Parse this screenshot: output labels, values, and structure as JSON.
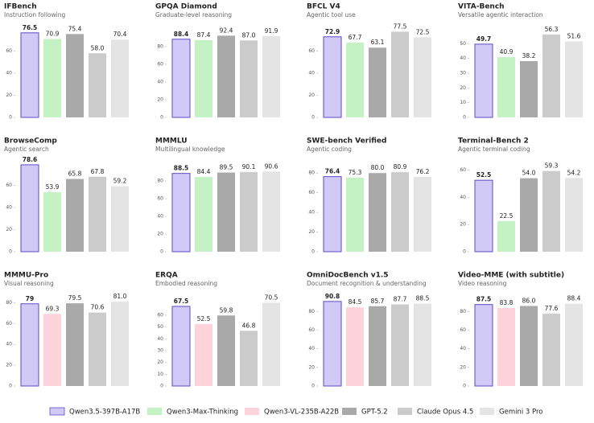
{
  "chart_data": [
    {
      "type": "bar",
      "title": "IFBench",
      "subtitle": "Instruction following",
      "ylim": [
        0,
        80
      ],
      "yticks": [
        0,
        20,
        40,
        60
      ],
      "series": [
        {
          "name": "Qwen3.5-397B-A17B",
          "color": "#d2caf6",
          "values": [
            76.5
          ]
        },
        {
          "name": "Qwen3-Max-Thinking",
          "color": "#c4f2c4",
          "values": [
            70.9
          ]
        },
        {
          "name": "GPT-5.2",
          "color": "#a9a9a9",
          "values": [
            75.4
          ]
        },
        {
          "name": "Claude Opus 4.5",
          "color": "#cbcbcb",
          "values": [
            58
          ],
          "value_labels": [
            "58.0"
          ]
        },
        {
          "name": "Gemini 3 Pro",
          "color": "#e4e4e4",
          "values": [
            70.4
          ]
        }
      ]
    },
    {
      "type": "bar",
      "title": "GPQA Diamond",
      "subtitle": "Graduate-level reasoning",
      "ylim": [
        0,
        100
      ],
      "yticks": [
        0,
        20,
        40,
        60,
        80
      ],
      "series": [
        {
          "name": "Qwen3.5-397B-A17B",
          "color": "#d2caf6",
          "values": [
            88.4
          ]
        },
        {
          "name": "Qwen3-Max-Thinking",
          "color": "#c4f2c4",
          "values": [
            87.4
          ]
        },
        {
          "name": "GPT-5.2",
          "color": "#a9a9a9",
          "values": [
            92.4
          ]
        },
        {
          "name": "Claude Opus 4.5",
          "color": "#cbcbcb",
          "values": [
            87
          ],
          "value_labels": [
            "87.0"
          ]
        },
        {
          "name": "Gemini 3 Pro",
          "color": "#e4e4e4",
          "values": [
            91.9
          ]
        }
      ]
    },
    {
      "type": "bar",
      "title": "BFCL V4",
      "subtitle": "Agentic tool use",
      "ylim": [
        0,
        80
      ],
      "yticks": [
        0,
        20,
        40,
        60
      ],
      "series": [
        {
          "name": "Qwen3.5-397B-A17B",
          "color": "#d2caf6",
          "values": [
            72.9
          ]
        },
        {
          "name": "Qwen3-Max-Thinking",
          "color": "#c4f2c4",
          "values": [
            67.7
          ]
        },
        {
          "name": "GPT-5.2",
          "color": "#a9a9a9",
          "values": [
            63.1
          ]
        },
        {
          "name": "Claude Opus 4.5",
          "color": "#cbcbcb",
          "values": [
            77.5
          ]
        },
        {
          "name": "Gemini 3 Pro",
          "color": "#e4e4e4",
          "values": [
            72.5
          ]
        }
      ]
    },
    {
      "type": "bar",
      "title": "VITA-Bench",
      "subtitle": "Versatile agentic interaction",
      "ylim": [
        0,
        60
      ],
      "yticks": [
        0,
        10,
        20,
        30,
        40,
        50
      ],
      "series": [
        {
          "name": "Qwen3.5-397B-A17B",
          "color": "#d2caf6",
          "values": [
            49.7
          ]
        },
        {
          "name": "Qwen3-Max-Thinking",
          "color": "#c4f2c4",
          "values": [
            40.9
          ]
        },
        {
          "name": "GPT-5.2",
          "color": "#a9a9a9",
          "values": [
            38.2
          ]
        },
        {
          "name": "Claude Opus 4.5",
          "color": "#cbcbcb",
          "values": [
            56.3
          ]
        },
        {
          "name": "Gemini 3 Pro",
          "color": "#e4e4e4",
          "values": [
            51.6
          ]
        }
      ]
    },
    {
      "type": "bar",
      "title": "BrowseComp",
      "subtitle": "Agentic search",
      "ylim": [
        0,
        80
      ],
      "yticks": [
        0,
        20,
        40,
        60
      ],
      "series": [
        {
          "name": "Qwen3.5-397B-A17B",
          "color": "#d2caf6",
          "values": [
            78.6
          ]
        },
        {
          "name": "Qwen3-Max-Thinking",
          "color": "#c4f2c4",
          "values": [
            53.9
          ]
        },
        {
          "name": "GPT-5.2",
          "color": "#a9a9a9",
          "values": [
            65.8
          ]
        },
        {
          "name": "Claude Opus 4.5",
          "color": "#cbcbcb",
          "values": [
            67.8
          ]
        },
        {
          "name": "Gemini 3 Pro",
          "color": "#e4e4e4",
          "values": [
            59.2
          ]
        }
      ]
    },
    {
      "type": "bar",
      "title": "MMMLU",
      "subtitle": "Multilingual knowledge",
      "ylim": [
        0,
        100
      ],
      "yticks": [
        0,
        20,
        40,
        60,
        80
      ],
      "series": [
        {
          "name": "Qwen3.5-397B-A17B",
          "color": "#d2caf6",
          "values": [
            88.5
          ]
        },
        {
          "name": "Qwen3-Max-Thinking",
          "color": "#c4f2c4",
          "values": [
            84.4
          ]
        },
        {
          "name": "GPT-5.2",
          "color": "#a9a9a9",
          "values": [
            89.5
          ]
        },
        {
          "name": "Claude Opus 4.5",
          "color": "#cbcbcb",
          "values": [
            90.1
          ]
        },
        {
          "name": "Gemini 3 Pro",
          "color": "#e4e4e4",
          "values": [
            90.6
          ]
        }
      ]
    },
    {
      "type": "bar",
      "title": "SWE-bench Verified",
      "subtitle": "Agentic coding",
      "ylim": [
        0,
        90
      ],
      "yticks": [
        0,
        20,
        40,
        60,
        80
      ],
      "series": [
        {
          "name": "Qwen3.5-397B-A17B",
          "color": "#d2caf6",
          "values": [
            76.4
          ]
        },
        {
          "name": "Qwen3-Max-Thinking",
          "color": "#c4f2c4",
          "values": [
            75.3
          ]
        },
        {
          "name": "GPT-5.2",
          "color": "#a9a9a9",
          "values": [
            80
          ],
          "value_labels": [
            "80.0"
          ]
        },
        {
          "name": "Claude Opus 4.5",
          "color": "#cbcbcb",
          "values": [
            80.9
          ]
        },
        {
          "name": "Gemini 3 Pro",
          "color": "#e4e4e4",
          "values": [
            76.2
          ]
        }
      ]
    },
    {
      "type": "bar",
      "title": "Terminal-Bench 2",
      "subtitle": "Agentic terminal coding",
      "ylim": [
        0,
        65
      ],
      "yticks": [
        0,
        20,
        40,
        60
      ],
      "series": [
        {
          "name": "Qwen3.5-397B-A17B",
          "color": "#d2caf6",
          "values": [
            52.5
          ]
        },
        {
          "name": "Qwen3-Max-Thinking",
          "color": "#c4f2c4",
          "values": [
            22.5
          ]
        },
        {
          "name": "GPT-5.2",
          "color": "#a9a9a9",
          "values": [
            54
          ],
          "value_labels": [
            "54.0"
          ]
        },
        {
          "name": "Claude Opus 4.5",
          "color": "#cbcbcb",
          "values": [
            59.3
          ]
        },
        {
          "name": "Gemini 3 Pro",
          "color": "#e4e4e4",
          "values": [
            54.2
          ]
        }
      ]
    },
    {
      "type": "bar",
      "title": "MMMU-Pro",
      "subtitle": "Visual reasoning",
      "ylim": [
        0,
        85
      ],
      "yticks": [
        0,
        20,
        40,
        60,
        80
      ],
      "series": [
        {
          "name": "Qwen3.5-397B-A17B",
          "color": "#d2caf6",
          "values": [
            79
          ]
        },
        {
          "name": "Qwen3-VL-235B-A22B",
          "color": "#ffd3db",
          "values": [
            69.3
          ]
        },
        {
          "name": "GPT-5.2",
          "color": "#a9a9a9",
          "values": [
            79.5
          ]
        },
        {
          "name": "Claude Opus 4.5",
          "color": "#cbcbcb",
          "values": [
            70.6
          ]
        },
        {
          "name": "Gemini 3 Pro",
          "color": "#e4e4e4",
          "values": [
            81
          ],
          "value_labels": [
            "81.0"
          ]
        }
      ],
      "bar_value_labels_note_free": null
    },
    {
      "type": "bar",
      "title": "ERQA",
      "subtitle": "Embodied reasoning",
      "ylim": [
        0,
        75
      ],
      "yticks": [
        0,
        10,
        20,
        30,
        40,
        50,
        60
      ],
      "series": [
        {
          "name": "Qwen3.5-397B-A17B",
          "color": "#d2caf6",
          "values": [
            67.5
          ]
        },
        {
          "name": "Qwen3-VL-235B-A22B",
          "color": "#ffd3db",
          "values": [
            52.5
          ]
        },
        {
          "name": "GPT-5.2",
          "color": "#a9a9a9",
          "values": [
            59.8
          ]
        },
        {
          "name": "Claude Opus 4.5",
          "color": "#cbcbcb",
          "values": [
            46.8
          ]
        },
        {
          "name": "Gemini 3 Pro",
          "color": "#e4e4e4",
          "values": [
            70.5
          ]
        }
      ]
    },
    {
      "type": "bar",
      "title": "OmniDocBench v1.5",
      "subtitle": "Document recognition & understanding",
      "ylim": [
        0,
        95
      ],
      "yticks": [
        0,
        20,
        40,
        60,
        80
      ],
      "series": [
        {
          "name": "Qwen3.5-397B-A17B",
          "color": "#d2caf6",
          "values": [
            90.8
          ]
        },
        {
          "name": "Qwen3-VL-235B-A22B",
          "color": "#ffd3db",
          "values": [
            84.5
          ]
        },
        {
          "name": "GPT-5.2",
          "color": "#a9a9a9",
          "values": [
            85.7
          ]
        },
        {
          "name": "Claude Opus 4.5",
          "color": "#cbcbcb",
          "values": [
            87.7
          ]
        },
        {
          "name": "Gemini 3 Pro",
          "color": "#e4e4e4",
          "values": [
            88.5
          ]
        }
      ]
    },
    {
      "type": "bar",
      "title": "Video-MME (with subtitle)",
      "subtitle": "Video reasoning",
      "ylim": [
        0,
        95
      ],
      "yticks": [
        0,
        20,
        40,
        60,
        80
      ],
      "series": [
        {
          "name": "Qwen3.5-397B-A17B",
          "color": "#d2caf6",
          "values": [
            87.5
          ]
        },
        {
          "name": "Qwen3-VL-235B-A22B",
          "color": "#ffd3db",
          "values": [
            83.8
          ]
        },
        {
          "name": "GPT-5.2",
          "color": "#a9a9a9",
          "values": [
            86
          ],
          "value_labels": [
            "86.0"
          ]
        },
        {
          "name": "Claude Opus 4.5",
          "color": "#cbcbcb",
          "values": [
            77.6
          ]
        },
        {
          "name": "Gemini 3 Pro",
          "color": "#e4e4e4",
          "values": [
            88.4
          ]
        }
      ]
    }
  ]
}
